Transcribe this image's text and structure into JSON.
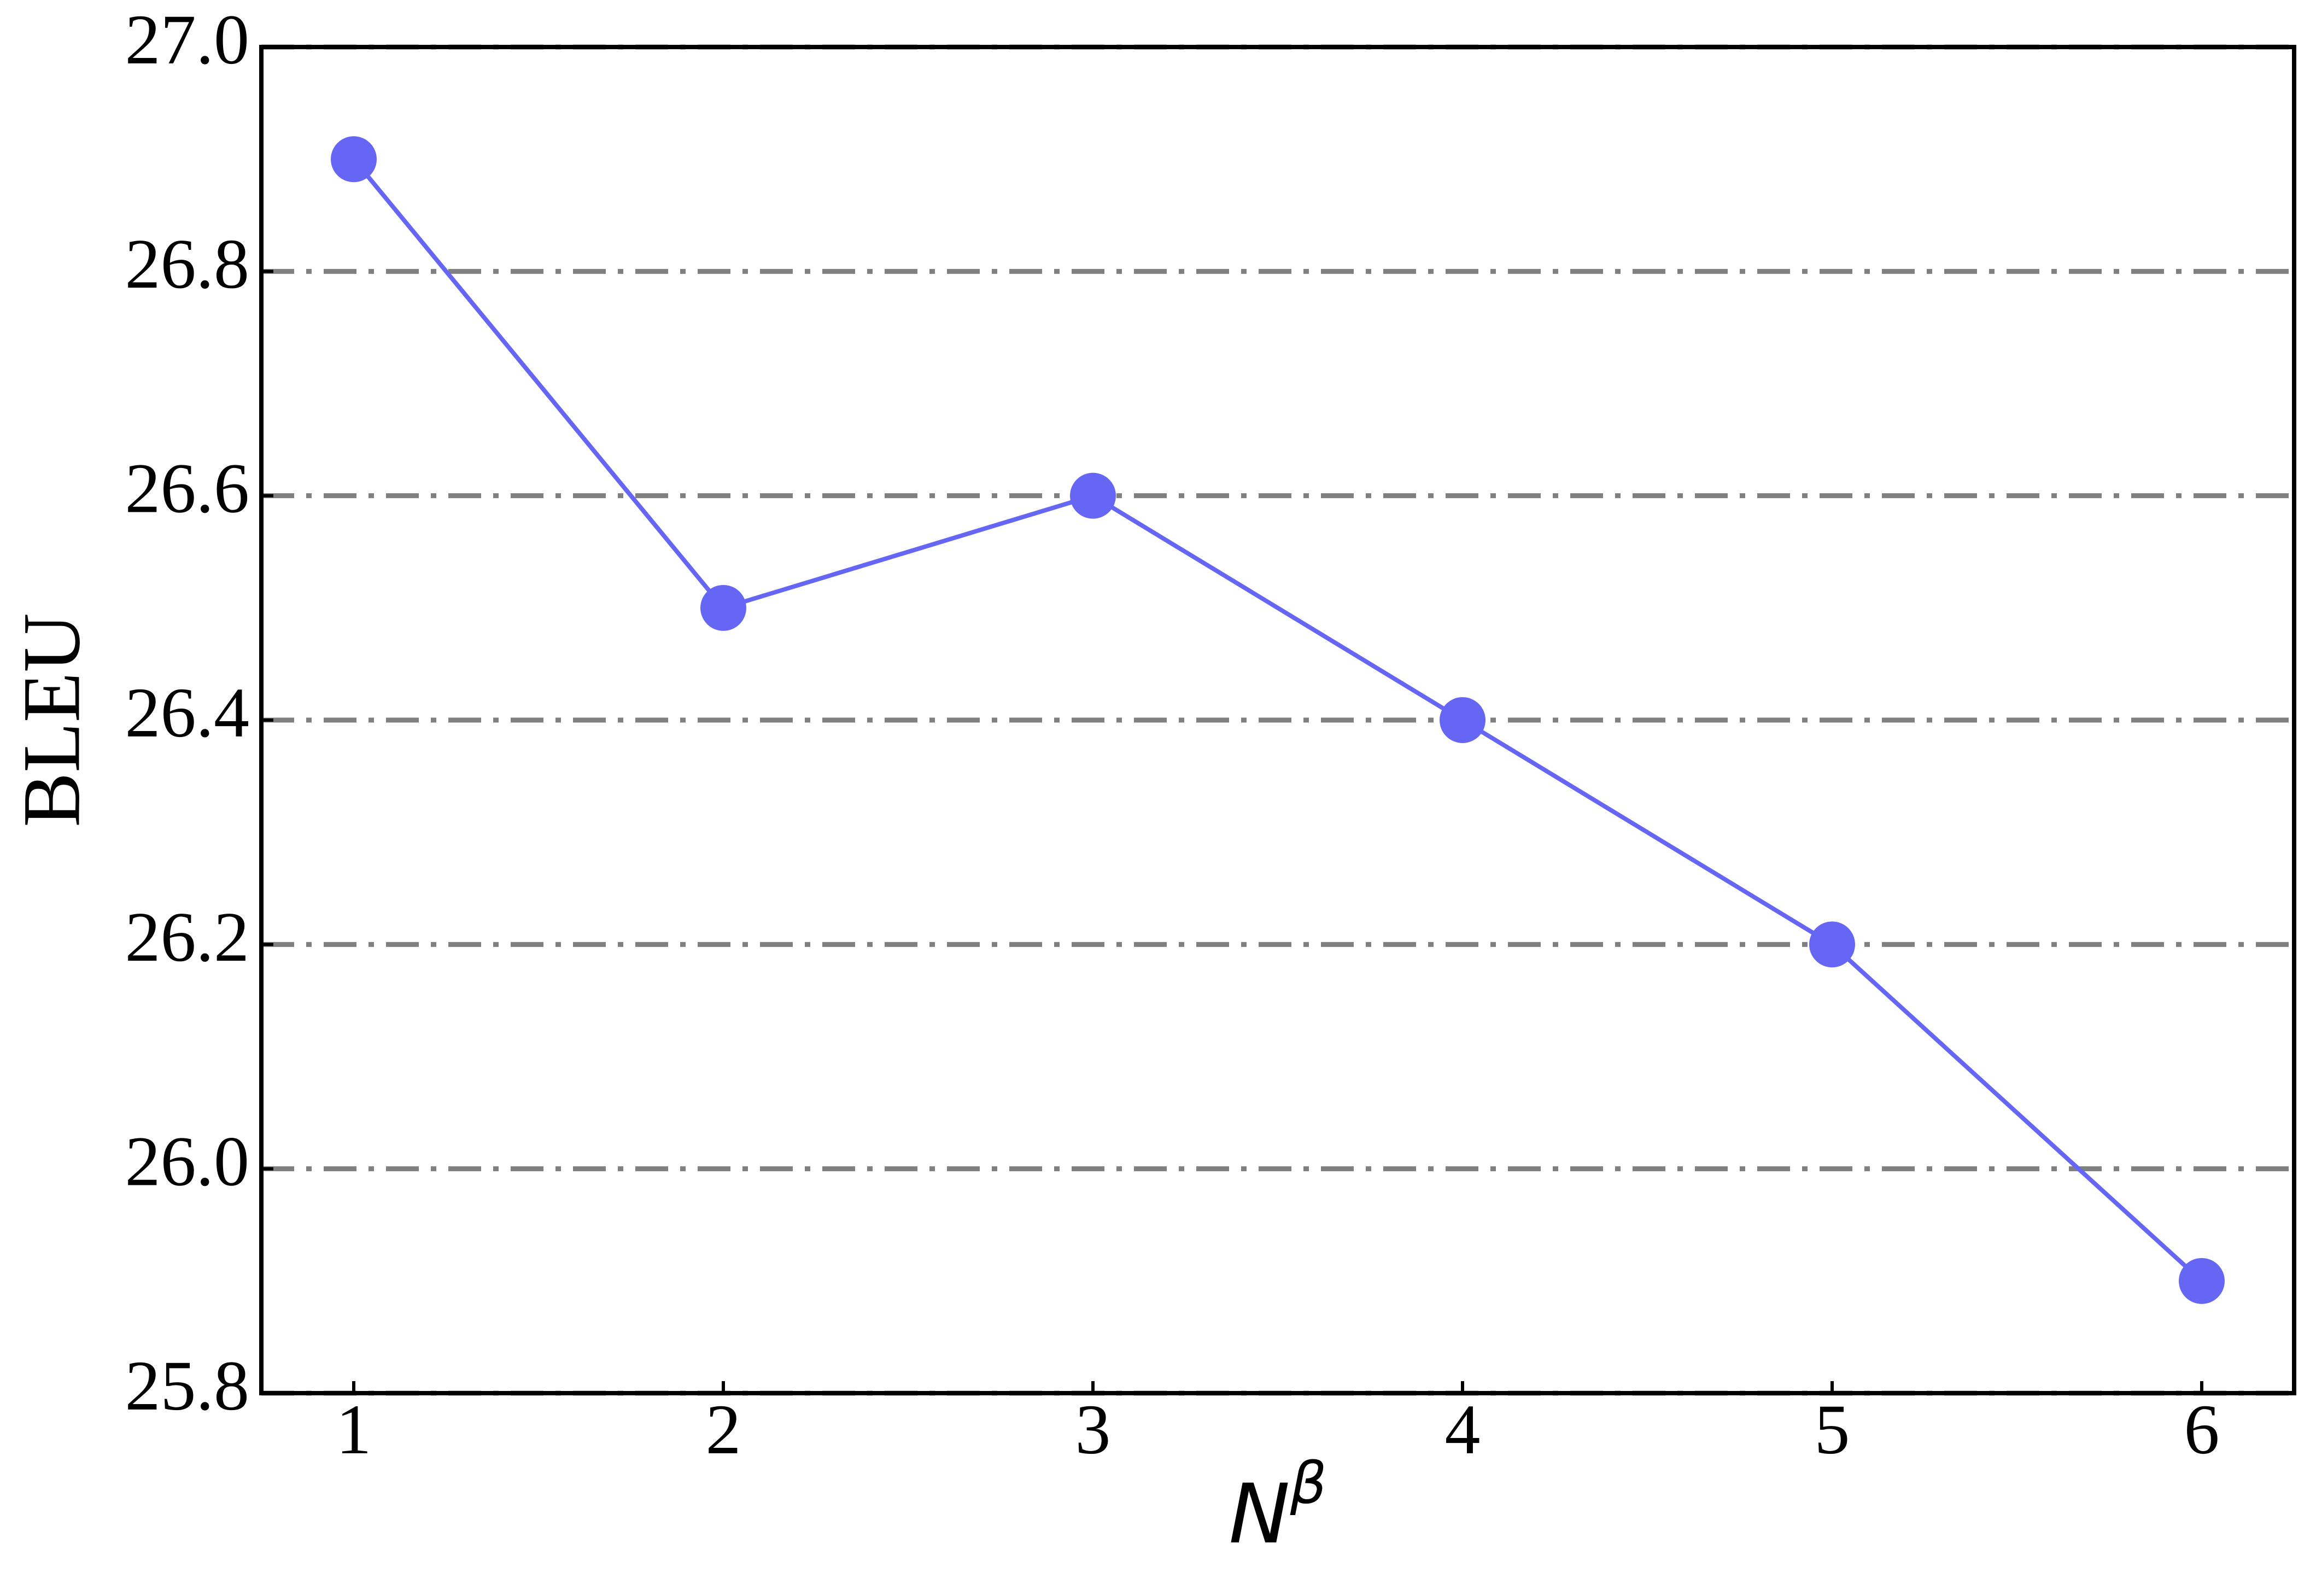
{
  "chart_data": {
    "type": "line",
    "xlabel": [
      "N",
      "β"
    ],
    "ylabel": "BLEU",
    "x": [
      1,
      2,
      3,
      4,
      5,
      6
    ],
    "series": [
      {
        "name": "BLEU",
        "color": "#6666f5",
        "values": [
          26.9,
          26.5,
          26.6,
          26.4,
          26.2,
          25.9
        ]
      }
    ],
    "xlim": [
      0.75,
      6.25
    ],
    "xticks": [
      1,
      2,
      3,
      4,
      5,
      6
    ],
    "ylim": [
      25.8,
      27.0
    ],
    "yticks": [
      25.8,
      {
        "value": 26,
        "label": "26.0"
      },
      26.2,
      26.4,
      26.6,
      26.8,
      {
        "value": 27,
        "label": "27.0"
      }
    ],
    "grid": true,
    "grid_color": "#808080"
  }
}
